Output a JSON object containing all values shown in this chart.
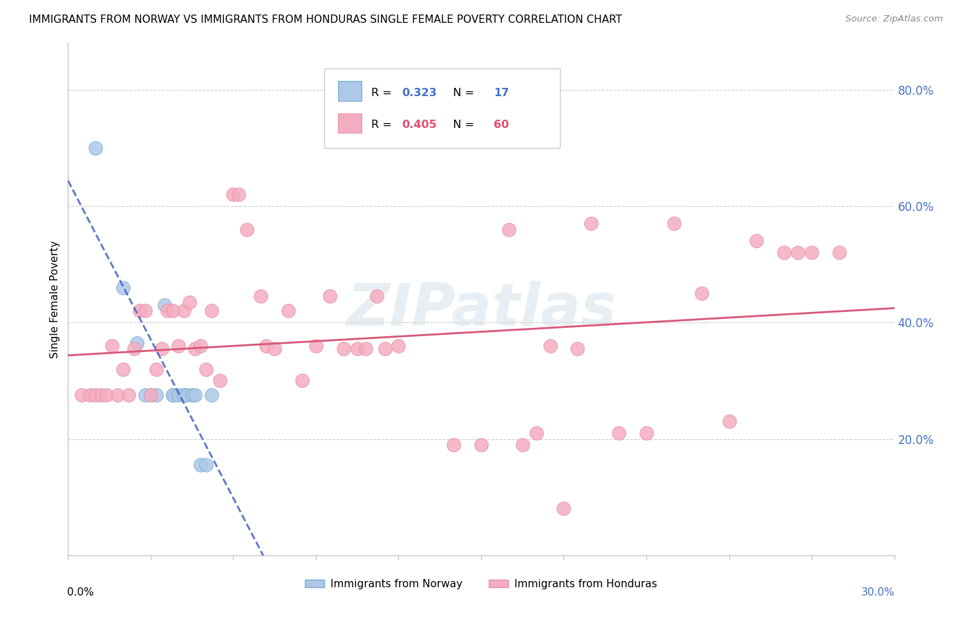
{
  "title": "IMMIGRANTS FROM NORWAY VS IMMIGRANTS FROM HONDURAS SINGLE FEMALE POVERTY CORRELATION CHART",
  "source": "Source: ZipAtlas.com",
  "ylabel": "Single Female Poverty",
  "norway_R": 0.323,
  "norway_N": 17,
  "honduras_R": 0.405,
  "honduras_N": 60,
  "norway_fill": "#adc8e8",
  "honduras_fill": "#f4adc0",
  "norway_edge": "#7aaad0",
  "honduras_edge": "#e890a8",
  "norway_line": "#4060c0",
  "honduras_line": "#d85878",
  "label_color": "#4472c4",
  "watermark": "ZIPatlas",
  "xlim": [
    0.0,
    0.3
  ],
  "ylim": [
    0.0,
    0.88
  ],
  "yticks": [
    0.2,
    0.4,
    0.6,
    0.8
  ],
  "ytick_labels": [
    "20.0%",
    "40.0%",
    "60.0%",
    "80.0%"
  ],
  "xticks": [
    0.0,
    0.03,
    0.06,
    0.09,
    0.12,
    0.15,
    0.18,
    0.21,
    0.24,
    0.27,
    0.3
  ],
  "norway_x": [
    0.01,
    0.02,
    0.025,
    0.028,
    0.03,
    0.032,
    0.035,
    0.038,
    0.038,
    0.04,
    0.042,
    0.043,
    0.045,
    0.046,
    0.048,
    0.05,
    0.052
  ],
  "norway_y": [
    0.7,
    0.46,
    0.365,
    0.275,
    0.275,
    0.275,
    0.43,
    0.275,
    0.275,
    0.275,
    0.275,
    0.275,
    0.275,
    0.275,
    0.155,
    0.155,
    0.275
  ],
  "honduras_x": [
    0.005,
    0.008,
    0.01,
    0.012,
    0.014,
    0.016,
    0.018,
    0.02,
    0.022,
    0.024,
    0.026,
    0.028,
    0.03,
    0.032,
    0.034,
    0.036,
    0.038,
    0.04,
    0.042,
    0.044,
    0.046,
    0.048,
    0.05,
    0.052,
    0.055,
    0.06,
    0.062,
    0.065,
    0.07,
    0.072,
    0.075,
    0.08,
    0.085,
    0.09,
    0.095,
    0.1,
    0.105,
    0.108,
    0.112,
    0.115,
    0.12,
    0.14,
    0.15,
    0.16,
    0.165,
    0.17,
    0.175,
    0.18,
    0.185,
    0.19,
    0.2,
    0.21,
    0.22,
    0.23,
    0.24,
    0.25,
    0.26,
    0.265,
    0.27,
    0.28
  ],
  "honduras_y": [
    0.275,
    0.275,
    0.275,
    0.275,
    0.275,
    0.36,
    0.275,
    0.32,
    0.275,
    0.355,
    0.42,
    0.42,
    0.275,
    0.32,
    0.355,
    0.42,
    0.42,
    0.36,
    0.42,
    0.435,
    0.355,
    0.36,
    0.32,
    0.42,
    0.3,
    0.62,
    0.62,
    0.56,
    0.445,
    0.36,
    0.355,
    0.42,
    0.3,
    0.36,
    0.445,
    0.355,
    0.355,
    0.355,
    0.445,
    0.355,
    0.36,
    0.19,
    0.19,
    0.56,
    0.19,
    0.21,
    0.36,
    0.08,
    0.355,
    0.57,
    0.21,
    0.21,
    0.57,
    0.45,
    0.23,
    0.54,
    0.52,
    0.52,
    0.52,
    0.52
  ]
}
